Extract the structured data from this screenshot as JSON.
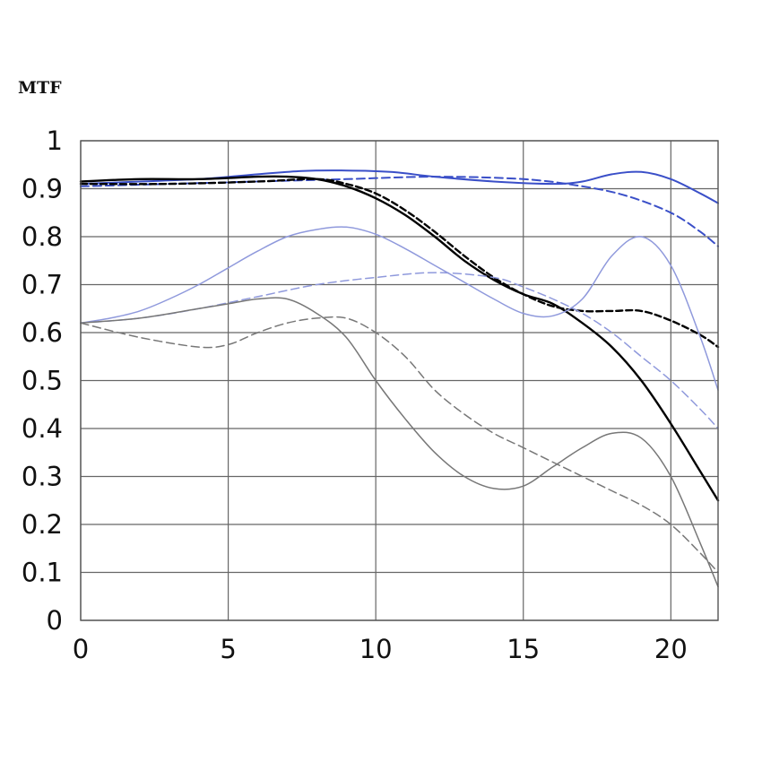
{
  "chart_data": {
    "type": "line",
    "title": "",
    "ylabel": "MTF",
    "xlabel": "",
    "xlim": [
      0,
      21.6
    ],
    "ylim": [
      0,
      1
    ],
    "grid": true,
    "legend": "none",
    "x_ticks": [
      0,
      5,
      10,
      15,
      20
    ],
    "x_tick_labels": [
      "0",
      "5",
      "10",
      "15",
      "20"
    ],
    "y_ticks": [
      0,
      0.1,
      0.2,
      0.3,
      0.4,
      0.5,
      0.6,
      0.7,
      0.8,
      0.9,
      1
    ],
    "y_tick_labels": [
      "0",
      "0.1",
      "0.2",
      "0.3",
      "0.4",
      "0.5",
      "0.6",
      "0.7",
      "0.8",
      "0.9",
      "1"
    ],
    "series": [
      {
        "name": "blue-solid",
        "color": "#3a4fc8",
        "style": "solid",
        "points": [
          [
            0,
            0.91
          ],
          [
            2,
            0.915
          ],
          [
            4,
            0.92
          ],
          [
            6,
            0.93
          ],
          [
            7.5,
            0.937
          ],
          [
            9,
            0.938
          ],
          [
            10.5,
            0.935
          ],
          [
            12,
            0.925
          ],
          [
            14,
            0.915
          ],
          [
            16,
            0.91
          ],
          [
            17,
            0.915
          ],
          [
            18,
            0.93
          ],
          [
            19,
            0.935
          ],
          [
            20,
            0.92
          ],
          [
            21,
            0.89
          ],
          [
            21.6,
            0.87
          ]
        ]
      },
      {
        "name": "blue-dashed",
        "color": "#3a4fc8",
        "style": "dashed",
        "points": [
          [
            0,
            0.905
          ],
          [
            3,
            0.91
          ],
          [
            6,
            0.915
          ],
          [
            9,
            0.92
          ],
          [
            12,
            0.925
          ],
          [
            15,
            0.92
          ],
          [
            17,
            0.905
          ],
          [
            18.5,
            0.885
          ],
          [
            20,
            0.85
          ],
          [
            21,
            0.81
          ],
          [
            21.6,
            0.78
          ]
        ]
      },
      {
        "name": "black-solid",
        "color": "#000000",
        "style": "solid",
        "points": [
          [
            0,
            0.915
          ],
          [
            2,
            0.92
          ],
          [
            4,
            0.92
          ],
          [
            6,
            0.925
          ],
          [
            7,
            0.925
          ],
          [
            8,
            0.92
          ],
          [
            9,
            0.905
          ],
          [
            10,
            0.88
          ],
          [
            11,
            0.845
          ],
          [
            12,
            0.8
          ],
          [
            13,
            0.75
          ],
          [
            14,
            0.71
          ],
          [
            15,
            0.68
          ],
          [
            16,
            0.66
          ],
          [
            17,
            0.62
          ],
          [
            18,
            0.57
          ],
          [
            19,
            0.5
          ],
          [
            20,
            0.41
          ],
          [
            21,
            0.31
          ],
          [
            21.6,
            0.25
          ]
        ]
      },
      {
        "name": "black-dashed",
        "color": "#000000",
        "style": "dashed",
        "points": [
          [
            0,
            0.91
          ],
          [
            3,
            0.91
          ],
          [
            6,
            0.915
          ],
          [
            8,
            0.92
          ],
          [
            9,
            0.91
          ],
          [
            10,
            0.89
          ],
          [
            11,
            0.855
          ],
          [
            12,
            0.81
          ],
          [
            13,
            0.76
          ],
          [
            14,
            0.715
          ],
          [
            15,
            0.68
          ],
          [
            16,
            0.655
          ],
          [
            17,
            0.645
          ],
          [
            18,
            0.645
          ],
          [
            19,
            0.645
          ],
          [
            20,
            0.625
          ],
          [
            21,
            0.595
          ],
          [
            21.6,
            0.57
          ]
        ]
      },
      {
        "name": "lightblue-solid",
        "color": "#8f99dc",
        "style": "solid",
        "points": [
          [
            0,
            0.62
          ],
          [
            1,
            0.63
          ],
          [
            2,
            0.645
          ],
          [
            3,
            0.67
          ],
          [
            4,
            0.7
          ],
          [
            5,
            0.735
          ],
          [
            6,
            0.77
          ],
          [
            7,
            0.8
          ],
          [
            8,
            0.815
          ],
          [
            9,
            0.82
          ],
          [
            10,
            0.805
          ],
          [
            11,
            0.775
          ],
          [
            12,
            0.74
          ],
          [
            13,
            0.705
          ],
          [
            14,
            0.67
          ],
          [
            15,
            0.64
          ],
          [
            16,
            0.635
          ],
          [
            17,
            0.67
          ],
          [
            18,
            0.76
          ],
          [
            19,
            0.8
          ],
          [
            20,
            0.74
          ],
          [
            21,
            0.59
          ],
          [
            21.6,
            0.48
          ]
        ]
      },
      {
        "name": "lightblue-dashed",
        "color": "#8f99dc",
        "style": "dashed",
        "points": [
          [
            0,
            0.62
          ],
          [
            2,
            0.63
          ],
          [
            4,
            0.65
          ],
          [
            6,
            0.675
          ],
          [
            8,
            0.7
          ],
          [
            10,
            0.715
          ],
          [
            12,
            0.725
          ],
          [
            14,
            0.715
          ],
          [
            15,
            0.695
          ],
          [
            16,
            0.67
          ],
          [
            17,
            0.64
          ],
          [
            18,
            0.6
          ],
          [
            19,
            0.55
          ],
          [
            20,
            0.5
          ],
          [
            21,
            0.44
          ],
          [
            21.6,
            0.4
          ]
        ]
      },
      {
        "name": "gray-solid",
        "color": "#777777",
        "style": "solid",
        "points": [
          [
            0,
            0.62
          ],
          [
            2,
            0.63
          ],
          [
            4,
            0.65
          ],
          [
            5,
            0.66
          ],
          [
            6,
            0.67
          ],
          [
            7,
            0.67
          ],
          [
            8,
            0.64
          ],
          [
            9,
            0.59
          ],
          [
            10,
            0.5
          ],
          [
            11,
            0.42
          ],
          [
            12,
            0.35
          ],
          [
            13,
            0.3
          ],
          [
            14,
            0.275
          ],
          [
            15,
            0.28
          ],
          [
            16,
            0.32
          ],
          [
            17,
            0.36
          ],
          [
            18,
            0.39
          ],
          [
            19,
            0.38
          ],
          [
            20,
            0.3
          ],
          [
            21,
            0.16
          ],
          [
            21.6,
            0.07
          ]
        ]
      },
      {
        "name": "gray-dashed",
        "color": "#777777",
        "style": "dashed",
        "points": [
          [
            0,
            0.62
          ],
          [
            2,
            0.59
          ],
          [
            4,
            0.57
          ],
          [
            5,
            0.575
          ],
          [
            6,
            0.6
          ],
          [
            7,
            0.62
          ],
          [
            8,
            0.63
          ],
          [
            9,
            0.63
          ],
          [
            10,
            0.6
          ],
          [
            11,
            0.55
          ],
          [
            12,
            0.48
          ],
          [
            13,
            0.43
          ],
          [
            14,
            0.39
          ],
          [
            15,
            0.36
          ],
          [
            16,
            0.33
          ],
          [
            17,
            0.3
          ],
          [
            18,
            0.27
          ],
          [
            19,
            0.24
          ],
          [
            20,
            0.2
          ],
          [
            21,
            0.14
          ],
          [
            21.6,
            0.1
          ]
        ]
      }
    ]
  }
}
